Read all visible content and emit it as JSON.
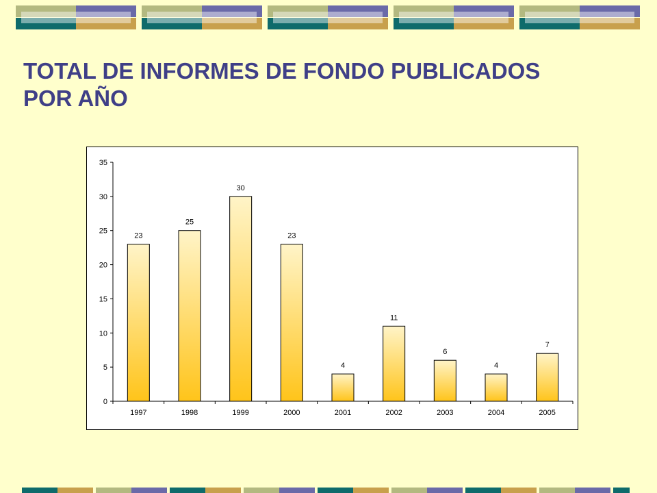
{
  "slide": {
    "title_line1": "TOTAL DE INFORMES DE FONDO PUBLICADOS",
    "title_line2": "POR AÑO"
  },
  "colors": {
    "background": "#FFFFCC",
    "title": "#3F3F87",
    "band_olive": "#B3B980",
    "band_purple": "#6A6AA8",
    "band_teal": "#0E6B6B",
    "band_gold": "#C8A04C",
    "bar_top": "#FFF4C8",
    "bar_bottom": "#FFC41A"
  },
  "chart_data": {
    "type": "bar",
    "categories": [
      "1997",
      "1998",
      "1999",
      "2000",
      "2001",
      "2002",
      "2003",
      "2004",
      "2005"
    ],
    "values": [
      23,
      25,
      30,
      23,
      4,
      11,
      6,
      4,
      7
    ],
    "data_labels": [
      "23",
      "25",
      "30",
      "23",
      "4",
      "11",
      "6",
      "4",
      "7"
    ],
    "title": "",
    "xlabel": "",
    "ylabel": "",
    "ylim": [
      0,
      35
    ],
    "yticks": [
      0,
      5,
      10,
      15,
      20,
      25,
      30,
      35
    ],
    "grid": false,
    "legend": "none"
  }
}
